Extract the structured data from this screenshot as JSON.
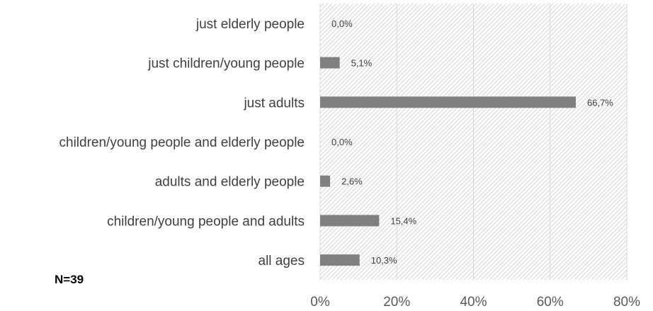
{
  "chart_data": {
    "type": "bar",
    "orientation": "horizontal",
    "categories": [
      "just elderly people",
      "just children/young people",
      "just adults",
      "children/young people and elderly people",
      "adults and elderly people",
      "children/young people and adults",
      "all ages"
    ],
    "values": [
      0.0,
      5.1,
      66.7,
      0.0,
      2.6,
      15.4,
      10.3
    ],
    "value_labels": [
      "0,0%",
      "5,1%",
      "66,7%",
      "0,0%",
      "2,6%",
      "15,4%",
      "10,3%"
    ],
    "x_ticks": [
      0,
      20,
      40,
      60,
      80
    ],
    "x_tick_labels": [
      "0%",
      "20%",
      "40%",
      "60%",
      "80%"
    ],
    "xlim": [
      0,
      80
    ],
    "grid": true,
    "plot_area_pattern": "diagonal-hatch",
    "bar_color": "#808080",
    "note": "N=39"
  }
}
